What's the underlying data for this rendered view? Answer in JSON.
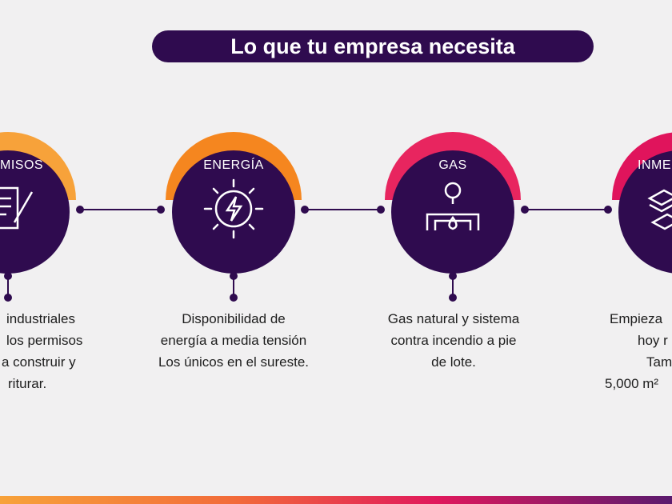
{
  "title": "Lo que tu empresa necesita",
  "colors": {
    "purple": "#2f0b4f",
    "orange_light": "#f7a23a",
    "orange": "#f5861f",
    "pink": "#e8255f",
    "magenta": "#e0145c"
  },
  "items": [
    {
      "label": "MISOS",
      "icon": "document-pen-icon",
      "arc_color": "#f7a23a",
      "lines": [
        "industriales",
        "los permisos",
        "a construir y",
        "riturar."
      ]
    },
    {
      "label": "ENERGÍA",
      "icon": "sun-lightning-icon",
      "arc_color": "#f5861f",
      "lines": [
        "Disponibilidad de",
        "energía a media tensión",
        "Los únicos en el sureste."
      ]
    },
    {
      "label": "GAS",
      "icon": "gas-valve-icon",
      "arc_color": "#e8255f",
      "lines": [
        "Gas natural y sistema",
        "contra incendio a pie",
        "de lote."
      ]
    },
    {
      "label": "INME",
      "icon": "buildings-icon",
      "arc_color": "#e0145c",
      "lines": [
        "Empieza",
        "hoy r",
        "Tam",
        "5,000 m² "
      ]
    }
  ]
}
